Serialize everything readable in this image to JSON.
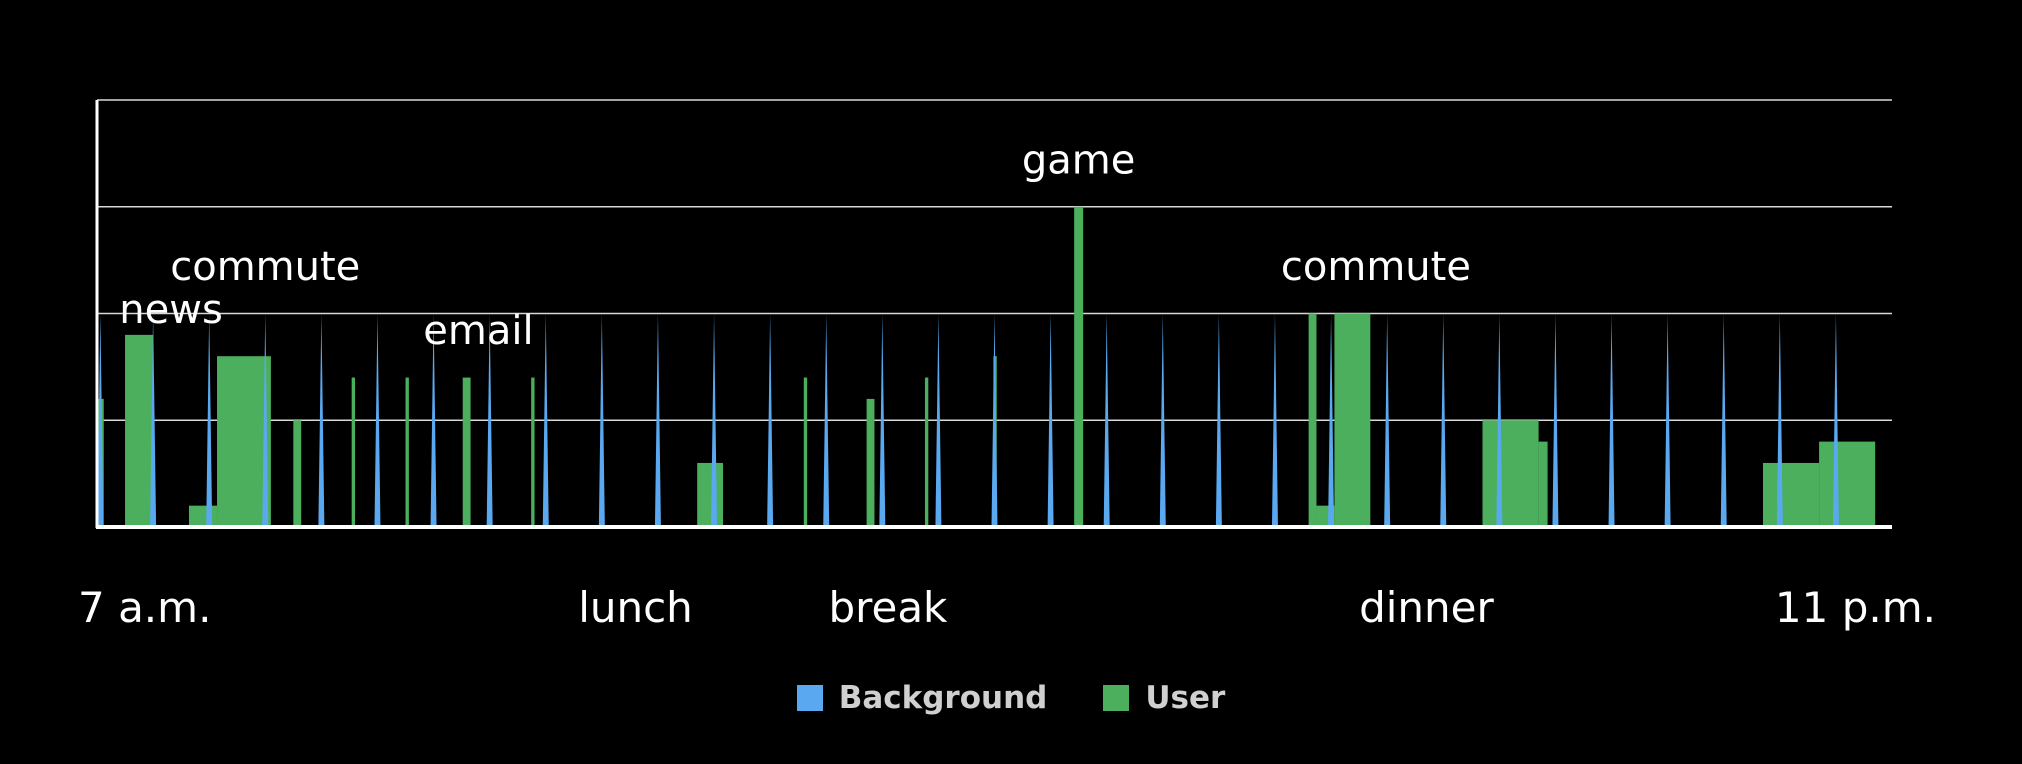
{
  "chart_data": {
    "type": "area",
    "x_unit": "hour of day (24h)",
    "xlim": [
      7,
      23
    ],
    "ylim": [
      0,
      4
    ],
    "grid": true,
    "legend_position": "bottom-center",
    "x_tick_labels": [
      {
        "x": 7.0,
        "label": "7 a.m."
      },
      {
        "x": 11.8,
        "label": "lunch"
      },
      {
        "x": 14.05,
        "label": "break"
      },
      {
        "x": 18.85,
        "label": "dinner"
      },
      {
        "x": 23.0,
        "label": "11 p.m."
      }
    ],
    "annotations": [
      {
        "text": "news",
        "x": 7.66,
        "y": 1.8
      },
      {
        "text": "commute",
        "x": 8.5,
        "y": 2.2
      },
      {
        "text": "email",
        "x": 10.4,
        "y": 1.6
      },
      {
        "text": "game",
        "x": 15.75,
        "y": 3.2
      },
      {
        "text": "commute",
        "x": 18.4,
        "y": 2.2
      }
    ],
    "series": [
      {
        "name": "Background",
        "color": "#5aa9f0",
        "spike_times": [
          7.03,
          7.5,
          8.0,
          8.5,
          9.0,
          9.5,
          10.0,
          10.5,
          11.0,
          11.5,
          12.0,
          12.5,
          13.0,
          13.5,
          14.0,
          14.5,
          15.0,
          15.5,
          16.0,
          16.5,
          17.0,
          17.5,
          18.0,
          18.5,
          19.0,
          19.5,
          20.0,
          20.5,
          21.0,
          21.5,
          22.0,
          22.5
        ],
        "spike_height": 2.0
      },
      {
        "name": "User",
        "color": "#4caf5e",
        "blocks": [
          {
            "start": 7.0,
            "end": 7.06,
            "value": 1.2
          },
          {
            "start": 7.25,
            "end": 7.5,
            "value": 1.8
          },
          {
            "start": 7.82,
            "end": 8.07,
            "value": 0.2
          },
          {
            "start": 8.07,
            "end": 8.55,
            "value": 1.6
          },
          {
            "start": 8.75,
            "end": 8.82,
            "value": 1.0
          },
          {
            "start": 9.27,
            "end": 9.3,
            "value": 1.4
          },
          {
            "start": 9.75,
            "end": 9.78,
            "value": 1.4
          },
          {
            "start": 10.26,
            "end": 10.33,
            "value": 1.4
          },
          {
            "start": 10.87,
            "end": 10.9,
            "value": 1.4
          },
          {
            "start": 12.35,
            "end": 12.58,
            "value": 0.6
          },
          {
            "start": 13.3,
            "end": 13.33,
            "value": 1.4
          },
          {
            "start": 13.86,
            "end": 13.93,
            "value": 1.2
          },
          {
            "start": 14.38,
            "end": 14.41,
            "value": 1.4
          },
          {
            "start": 14.99,
            "end": 15.02,
            "value": 1.6
          },
          {
            "start": 15.71,
            "end": 15.79,
            "value": 3.0
          },
          {
            "start": 17.8,
            "end": 17.87,
            "value": 2.0
          },
          {
            "start": 17.87,
            "end": 18.03,
            "value": 0.2
          },
          {
            "start": 18.03,
            "end": 18.35,
            "value": 2.0
          },
          {
            "start": 19.35,
            "end": 19.85,
            "value": 1.0
          },
          {
            "start": 19.85,
            "end": 19.93,
            "value": 0.8
          },
          {
            "start": 21.85,
            "end": 22.35,
            "value": 0.6
          },
          {
            "start": 22.35,
            "end": 22.85,
            "value": 0.8
          }
        ]
      }
    ]
  }
}
